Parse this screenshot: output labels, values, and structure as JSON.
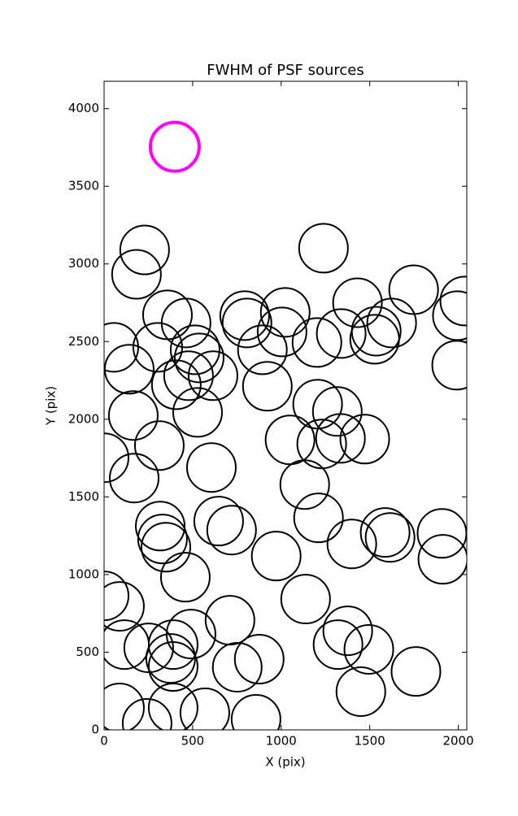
{
  "chart_data": {
    "type": "scatter",
    "title": "FWHM of PSF sources",
    "x_label": "X (pix)",
    "y_label": "Y (pix)",
    "xlim": [
      0,
      2048
    ],
    "ylim": [
      0,
      4176
    ],
    "xticks": [
      0,
      500,
      1000,
      1500,
      2000
    ],
    "yticks": [
      0,
      500,
      1000,
      1500,
      2000,
      2500,
      3000,
      3500,
      4000
    ],
    "grid": false,
    "series": [
      {
        "color": "#000000",
        "linewidth": 2,
        "x": [
          229,
          183,
          358,
          463,
          303,
          514,
          537,
          477,
          408,
          615,
          55,
          142,
          165,
          312,
          528,
          170,
          0,
          606,
          647,
          720,
          317,
          330,
          349,
          459,
          0,
          87,
          115,
          252,
          390,
          376,
          390,
          491,
          711,
          752,
          876,
          87,
          390,
          569,
          243,
          858,
          794,
          807,
          894,
          1023,
          1005,
          922,
          1239,
          1202,
          1339,
          1431,
          1528,
          1537,
          1624,
          1748,
          2037,
          1995,
          1991,
          1050,
          1206,
          1317,
          1229,
          1335,
          1472,
          1133,
          1211,
          1399,
          1587,
          1615,
          1908,
          1913,
          972,
          1138,
          1376,
          1321,
          1495,
          1761,
          1450
        ],
        "y": [
          3090,
          2933,
          2672,
          2620,
          2463,
          2447,
          2395,
          2280,
          2222,
          2280,
          2463,
          2322,
          2024,
          1830,
          2044,
          1621,
          1752,
          1689,
          1344,
          1286,
          1312,
          1229,
          1176,
          983,
          863,
          795,
          549,
          528,
          549,
          460,
          408,
          617,
          706,
          403,
          455,
          141,
          141,
          110,
          42,
          68,
          2667,
          2620,
          2447,
          2688,
          2562,
          2212,
          3101,
          2494,
          2552,
          2750,
          2515,
          2567,
          2620,
          2834,
          2761,
          2667,
          2348,
          1867,
          2097,
          2050,
          1841,
          1877,
          1872,
          1579,
          1365,
          1197,
          1271,
          1239,
          1265,
          1098,
          1119,
          842,
          638,
          549,
          518,
          376,
          246
        ]
      },
      {
        "color": "#ff00ff",
        "linewidth": 4,
        "x": [
          399
        ],
        "y": [
          3754
        ]
      }
    ]
  }
}
